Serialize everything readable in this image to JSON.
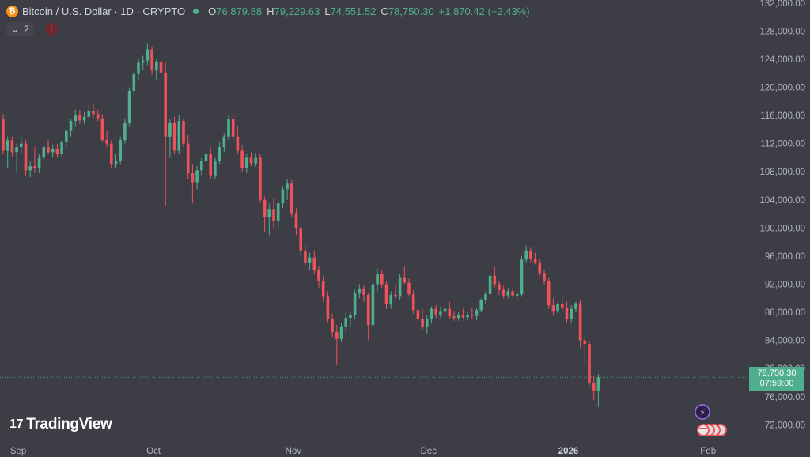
{
  "header": {
    "coin_icon": "bitcoin-icon",
    "symbol": "Bitcoin / U.S. Dollar · 1D · CRYPTO",
    "ohlc": [
      {
        "label": "O",
        "value": "76,879.88"
      },
      {
        "label": "H",
        "value": "79,229.63"
      },
      {
        "label": "L",
        "value": "74,551.52"
      },
      {
        "label": "C",
        "value": "78,750.30"
      }
    ],
    "change": "+1,870.42 (+2.43%)",
    "indicators_count": "2",
    "alert_icon": "alert-icon"
  },
  "price_tag": {
    "price": "78,750.30",
    "countdown": "07:59:00"
  },
  "logo_text": "TradingView",
  "colors": {
    "up": "#4fae8e",
    "down": "#f0515b",
    "background": "#3d3d45",
    "accent": "#4fae8e"
  },
  "chart_data": {
    "type": "candlestick",
    "y_ticks": [
      "132,000.00",
      "128,000.00",
      "124,000.00",
      "120,000.00",
      "116,000.00",
      "112,000.00",
      "108,000.00",
      "104,000.00",
      "100,000.00",
      "96,000.00",
      "92,000.00",
      "88,000.00",
      "84,000.00",
      "80,000.00",
      "76,000.00",
      "72,000.00"
    ],
    "y_tick_values": [
      132000,
      128000,
      124000,
      120000,
      116000,
      112000,
      108000,
      104000,
      100000,
      96000,
      92000,
      88000,
      84000,
      80000,
      76000,
      72000
    ],
    "y_range": [
      69000,
      132200
    ],
    "x_labels": [
      "Sep",
      "Oct",
      "Nov",
      "Dec",
      "2026",
      "Feb"
    ],
    "x_label_index": [
      3,
      33,
      64,
      94,
      125,
      156
    ],
    "last_price": 78750.3,
    "candles": [
      {
        "o": 115500,
        "h": 116200,
        "l": 110500,
        "c": 111000
      },
      {
        "o": 111000,
        "h": 113000,
        "l": 108500,
        "c": 112500
      },
      {
        "o": 112500,
        "h": 113000,
        "l": 110200,
        "c": 110800
      },
      {
        "o": 110800,
        "h": 112000,
        "l": 108000,
        "c": 111500
      },
      {
        "o": 111500,
        "h": 113000,
        "l": 110500,
        "c": 112000
      },
      {
        "o": 112000,
        "h": 112500,
        "l": 107500,
        "c": 108200
      },
      {
        "o": 108200,
        "h": 109500,
        "l": 107200,
        "c": 108800
      },
      {
        "o": 108800,
        "h": 111500,
        "l": 107800,
        "c": 108500
      },
      {
        "o": 108500,
        "h": 110500,
        "l": 107800,
        "c": 110000
      },
      {
        "o": 110000,
        "h": 111800,
        "l": 109500,
        "c": 111500
      },
      {
        "o": 111500,
        "h": 112500,
        "l": 110500,
        "c": 110800
      },
      {
        "o": 110800,
        "h": 111800,
        "l": 110000,
        "c": 111200
      },
      {
        "o": 111200,
        "h": 112000,
        "l": 110000,
        "c": 110500
      },
      {
        "o": 110500,
        "h": 112500,
        "l": 110200,
        "c": 112200
      },
      {
        "o": 112200,
        "h": 114000,
        "l": 111500,
        "c": 113800
      },
      {
        "o": 113800,
        "h": 115500,
        "l": 113000,
        "c": 115200
      },
      {
        "o": 115200,
        "h": 116800,
        "l": 114500,
        "c": 116000
      },
      {
        "o": 116000,
        "h": 116800,
        "l": 114800,
        "c": 115300
      },
      {
        "o": 115300,
        "h": 116500,
        "l": 114800,
        "c": 115800
      },
      {
        "o": 115800,
        "h": 117500,
        "l": 115200,
        "c": 116600
      },
      {
        "o": 116600,
        "h": 117600,
        "l": 115600,
        "c": 116200
      },
      {
        "o": 116200,
        "h": 116800,
        "l": 115200,
        "c": 115600
      },
      {
        "o": 115600,
        "h": 116200,
        "l": 112200,
        "c": 112500
      },
      {
        "o": 112500,
        "h": 113800,
        "l": 111500,
        "c": 112000
      },
      {
        "o": 112000,
        "h": 112500,
        "l": 108500,
        "c": 109000
      },
      {
        "o": 109000,
        "h": 110500,
        "l": 108600,
        "c": 109500
      },
      {
        "o": 109500,
        "h": 113000,
        "l": 109000,
        "c": 112500
      },
      {
        "o": 112500,
        "h": 115500,
        "l": 112000,
        "c": 115000
      },
      {
        "o": 115000,
        "h": 120000,
        "l": 114500,
        "c": 119500
      },
      {
        "o": 119500,
        "h": 122500,
        "l": 118800,
        "c": 122000
      },
      {
        "o": 122000,
        "h": 124200,
        "l": 121000,
        "c": 123500
      },
      {
        "o": 123500,
        "h": 124500,
        "l": 122500,
        "c": 123800
      },
      {
        "o": 123800,
        "h": 126200,
        "l": 123200,
        "c": 125400
      },
      {
        "o": 125400,
        "h": 125800,
        "l": 121800,
        "c": 122400
      },
      {
        "o": 122400,
        "h": 124000,
        "l": 121000,
        "c": 123600
      },
      {
        "o": 123600,
        "h": 124500,
        "l": 121500,
        "c": 122100
      },
      {
        "o": 122100,
        "h": 123500,
        "l": 103200,
        "c": 113000
      },
      {
        "o": 113000,
        "h": 115500,
        "l": 110000,
        "c": 115000
      },
      {
        "o": 115000,
        "h": 115800,
        "l": 110500,
        "c": 111000
      },
      {
        "o": 111000,
        "h": 116000,
        "l": 110500,
        "c": 115200
      },
      {
        "o": 115200,
        "h": 115500,
        "l": 111500,
        "c": 112000
      },
      {
        "o": 112000,
        "h": 113200,
        "l": 107000,
        "c": 107800
      },
      {
        "o": 107800,
        "h": 109000,
        "l": 103500,
        "c": 106500
      },
      {
        "o": 106500,
        "h": 108800,
        "l": 105500,
        "c": 108200
      },
      {
        "o": 108200,
        "h": 110000,
        "l": 107500,
        "c": 109500
      },
      {
        "o": 109500,
        "h": 111000,
        "l": 108000,
        "c": 110500
      },
      {
        "o": 110500,
        "h": 111500,
        "l": 107000,
        "c": 107500
      },
      {
        "o": 107500,
        "h": 110000,
        "l": 107000,
        "c": 109600
      },
      {
        "o": 109600,
        "h": 112200,
        "l": 109000,
        "c": 111500
      },
      {
        "o": 111500,
        "h": 113500,
        "l": 110800,
        "c": 113000
      },
      {
        "o": 113000,
        "h": 116000,
        "l": 112500,
        "c": 115500
      },
      {
        "o": 115500,
        "h": 116200,
        "l": 112500,
        "c": 113000
      },
      {
        "o": 113000,
        "h": 114500,
        "l": 110500,
        "c": 111000
      },
      {
        "o": 111000,
        "h": 111800,
        "l": 108000,
        "c": 108500
      },
      {
        "o": 108500,
        "h": 110500,
        "l": 107800,
        "c": 110000
      },
      {
        "o": 110000,
        "h": 110800,
        "l": 108800,
        "c": 109200
      },
      {
        "o": 109200,
        "h": 110600,
        "l": 108700,
        "c": 110000
      },
      {
        "o": 110000,
        "h": 110500,
        "l": 103500,
        "c": 104000
      },
      {
        "o": 104000,
        "h": 104500,
        "l": 99500,
        "c": 101500
      },
      {
        "o": 101500,
        "h": 103500,
        "l": 99000,
        "c": 102700
      },
      {
        "o": 102700,
        "h": 104200,
        "l": 100000,
        "c": 101000
      },
      {
        "o": 101000,
        "h": 104000,
        "l": 100000,
        "c": 103500
      },
      {
        "o": 103500,
        "h": 106000,
        "l": 102800,
        "c": 105500
      },
      {
        "o": 105500,
        "h": 107000,
        "l": 104000,
        "c": 106300
      },
      {
        "o": 106300,
        "h": 106800,
        "l": 101500,
        "c": 102000
      },
      {
        "o": 102000,
        "h": 102800,
        "l": 99000,
        "c": 100000
      },
      {
        "o": 100000,
        "h": 100800,
        "l": 96000,
        "c": 96800
      },
      {
        "o": 96800,
        "h": 97500,
        "l": 94500,
        "c": 95000
      },
      {
        "o": 95000,
        "h": 96500,
        "l": 94000,
        "c": 95800
      },
      {
        "o": 95800,
        "h": 96800,
        "l": 93500,
        "c": 94000
      },
      {
        "o": 94000,
        "h": 94500,
        "l": 91500,
        "c": 92500
      },
      {
        "o": 92500,
        "h": 93200,
        "l": 89500,
        "c": 90200
      },
      {
        "o": 90200,
        "h": 91000,
        "l": 86500,
        "c": 87000
      },
      {
        "o": 87000,
        "h": 87800,
        "l": 84500,
        "c": 85200
      },
      {
        "o": 85200,
        "h": 86200,
        "l": 80500,
        "c": 84200
      },
      {
        "o": 84200,
        "h": 86500,
        "l": 83800,
        "c": 86000
      },
      {
        "o": 86000,
        "h": 88000,
        "l": 85000,
        "c": 87200
      },
      {
        "o": 87200,
        "h": 88200,
        "l": 86000,
        "c": 87600
      },
      {
        "o": 87600,
        "h": 91200,
        "l": 87000,
        "c": 90800
      },
      {
        "o": 90800,
        "h": 92000,
        "l": 90000,
        "c": 91400
      },
      {
        "o": 91400,
        "h": 91800,
        "l": 89500,
        "c": 90500
      },
      {
        "o": 90500,
        "h": 90800,
        "l": 84000,
        "c": 86200
      },
      {
        "o": 86200,
        "h": 92500,
        "l": 85500,
        "c": 92000
      },
      {
        "o": 92000,
        "h": 94200,
        "l": 91000,
        "c": 93500
      },
      {
        "o": 93500,
        "h": 94000,
        "l": 91500,
        "c": 92000
      },
      {
        "o": 92000,
        "h": 92500,
        "l": 88500,
        "c": 89200
      },
      {
        "o": 89200,
        "h": 91000,
        "l": 88500,
        "c": 90500
      },
      {
        "o": 90500,
        "h": 91800,
        "l": 90000,
        "c": 90200
      },
      {
        "o": 90200,
        "h": 93500,
        "l": 89800,
        "c": 93000
      },
      {
        "o": 93000,
        "h": 94500,
        "l": 92000,
        "c": 92200
      },
      {
        "o": 92200,
        "h": 92800,
        "l": 90200,
        "c": 90600
      },
      {
        "o": 90600,
        "h": 91200,
        "l": 87800,
        "c": 88300
      },
      {
        "o": 88300,
        "h": 89000,
        "l": 86500,
        "c": 87000
      },
      {
        "o": 87000,
        "h": 88500,
        "l": 85500,
        "c": 86000
      },
      {
        "o": 86000,
        "h": 87500,
        "l": 85000,
        "c": 87000
      },
      {
        "o": 87000,
        "h": 88800,
        "l": 86500,
        "c": 88500
      },
      {
        "o": 88500,
        "h": 89000,
        "l": 87200,
        "c": 87700
      },
      {
        "o": 87700,
        "h": 88800,
        "l": 87200,
        "c": 88200
      },
      {
        "o": 88200,
        "h": 89500,
        "l": 87500,
        "c": 88500
      },
      {
        "o": 88500,
        "h": 89500,
        "l": 87000,
        "c": 87400
      },
      {
        "o": 87400,
        "h": 88200,
        "l": 86800,
        "c": 87200
      },
      {
        "o": 87200,
        "h": 88000,
        "l": 86800,
        "c": 87600
      },
      {
        "o": 87600,
        "h": 88500,
        "l": 87000,
        "c": 87300
      },
      {
        "o": 87300,
        "h": 88000,
        "l": 86900,
        "c": 87600
      },
      {
        "o": 87600,
        "h": 88600,
        "l": 87100,
        "c": 87500
      },
      {
        "o": 87500,
        "h": 88600,
        "l": 86900,
        "c": 88300
      },
      {
        "o": 88300,
        "h": 90000,
        "l": 88000,
        "c": 89800
      },
      {
        "o": 89800,
        "h": 91000,
        "l": 89200,
        "c": 90600
      },
      {
        "o": 90600,
        "h": 93500,
        "l": 90200,
        "c": 93200
      },
      {
        "o": 93200,
        "h": 94500,
        "l": 91500,
        "c": 92000
      },
      {
        "o": 92000,
        "h": 92500,
        "l": 90500,
        "c": 91200
      },
      {
        "o": 91200,
        "h": 91800,
        "l": 90000,
        "c": 90400
      },
      {
        "o": 90400,
        "h": 91500,
        "l": 90000,
        "c": 91000
      },
      {
        "o": 91000,
        "h": 91500,
        "l": 90000,
        "c": 90400
      },
      {
        "o": 90400,
        "h": 91000,
        "l": 89800,
        "c": 90600
      },
      {
        "o": 90600,
        "h": 96000,
        "l": 90200,
        "c": 95500
      },
      {
        "o": 95500,
        "h": 97500,
        "l": 95000,
        "c": 96800
      },
      {
        "o": 96800,
        "h": 97200,
        "l": 95000,
        "c": 95600
      },
      {
        "o": 95600,
        "h": 96500,
        "l": 94800,
        "c": 95000
      },
      {
        "o": 95000,
        "h": 95500,
        "l": 93200,
        "c": 93600
      },
      {
        "o": 93600,
        "h": 94000,
        "l": 92000,
        "c": 92500
      },
      {
        "o": 92500,
        "h": 93000,
        "l": 88500,
        "c": 89000
      },
      {
        "o": 89000,
        "h": 90000,
        "l": 87500,
        "c": 88200
      },
      {
        "o": 88200,
        "h": 89500,
        "l": 87800,
        "c": 89200
      },
      {
        "o": 89200,
        "h": 90200,
        "l": 88200,
        "c": 88700
      },
      {
        "o": 88700,
        "h": 89500,
        "l": 86500,
        "c": 87000
      },
      {
        "o": 87000,
        "h": 89000,
        "l": 86500,
        "c": 88500
      },
      {
        "o": 88500,
        "h": 89500,
        "l": 88000,
        "c": 89300
      },
      {
        "o": 89300,
        "h": 89800,
        "l": 83000,
        "c": 84000
      },
      {
        "o": 84000,
        "h": 85000,
        "l": 80500,
        "c": 83500
      },
      {
        "o": 83500,
        "h": 84000,
        "l": 77500,
        "c": 78000
      },
      {
        "o": 78000,
        "h": 79000,
        "l": 75500,
        "c": 76880
      },
      {
        "o": 76879.88,
        "h": 79229.63,
        "l": 74551.52,
        "c": 78750.3
      }
    ]
  }
}
